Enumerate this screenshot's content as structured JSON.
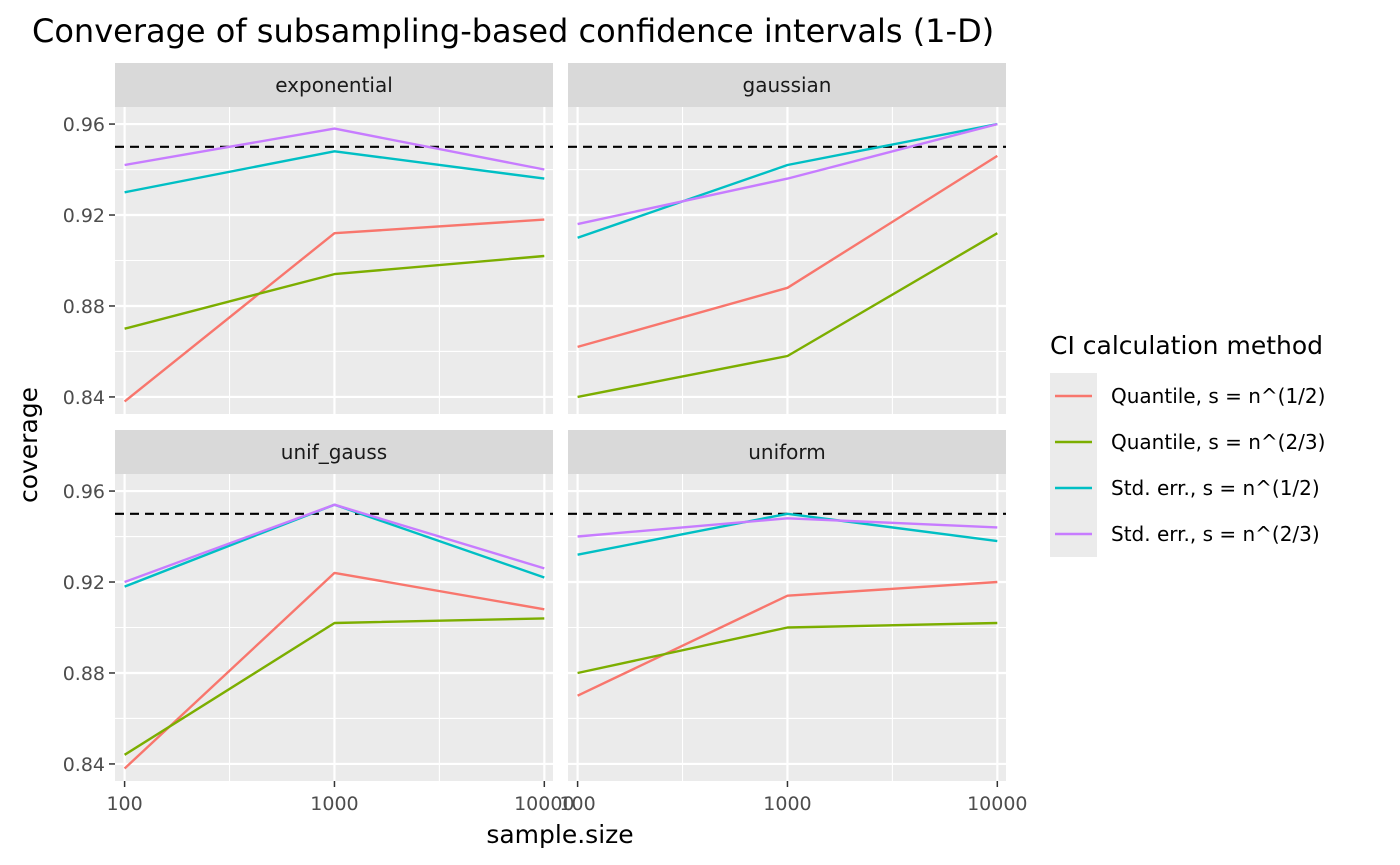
{
  "chart_data": {
    "type": "line",
    "title": "Converage of subsampling-based confidence intervals (1-D)",
    "xlabel": "sample.size",
    "ylabel": "coverage",
    "x_scale": "log10",
    "x": [
      100,
      1000,
      10000
    ],
    "x_tick_labels": [
      "100",
      "1000",
      "10000"
    ],
    "y_ticks": [
      0.84,
      0.88,
      0.92,
      0.96
    ],
    "y_tick_labels": [
      "0.84",
      "0.88",
      "0.92",
      "0.96"
    ],
    "ylim": [
      0.8325,
      0.9675
    ],
    "xlim": [
      90,
      11000
    ],
    "reference_line": {
      "y": 0.95,
      "style": "dashed",
      "color": "#000000"
    },
    "grid": true,
    "legend": {
      "title": "CI calculation method",
      "position": "right",
      "entries": [
        {
          "label": "Quantile, s = n^(1/2)",
          "color": "#F8766D"
        },
        {
          "label": "Quantile, s = n^(2/3)",
          "color": "#7CAE00"
        },
        {
          "label": "Std. err., s = n^(1/2)",
          "color": "#00BFC4"
        },
        {
          "label": "Std. err., s = n^(2/3)",
          "color": "#C77CFF"
        }
      ]
    },
    "facets": [
      {
        "label": "exponential",
        "series": [
          {
            "name": "Quantile, s = n^(1/2)",
            "values": [
              0.838,
              0.912,
              0.918
            ]
          },
          {
            "name": "Quantile, s = n^(2/3)",
            "values": [
              0.87,
              0.894,
              0.902
            ]
          },
          {
            "name": "Std. err., s = n^(1/2)",
            "values": [
              0.93,
              0.948,
              0.936
            ]
          },
          {
            "name": "Std. err., s = n^(2/3)",
            "values": [
              0.942,
              0.958,
              0.94
            ]
          }
        ]
      },
      {
        "label": "gaussian",
        "series": [
          {
            "name": "Quantile, s = n^(1/2)",
            "values": [
              0.862,
              0.888,
              0.946
            ]
          },
          {
            "name": "Quantile, s = n^(2/3)",
            "values": [
              0.84,
              0.858,
              0.912
            ]
          },
          {
            "name": "Std. err., s = n^(1/2)",
            "values": [
              0.91,
              0.942,
              0.96
            ]
          },
          {
            "name": "Std. err., s = n^(2/3)",
            "values": [
              0.916,
              0.936,
              0.96
            ]
          }
        ]
      },
      {
        "label": "unif_gauss",
        "series": [
          {
            "name": "Quantile, s = n^(1/2)",
            "values": [
              0.838,
              0.924,
              0.908
            ]
          },
          {
            "name": "Quantile, s = n^(2/3)",
            "values": [
              0.844,
              0.902,
              0.904
            ]
          },
          {
            "name": "Std. err., s = n^(1/2)",
            "values": [
              0.918,
              0.954,
              0.922
            ]
          },
          {
            "name": "Std. err., s = n^(2/3)",
            "values": [
              0.92,
              0.954,
              0.926
            ]
          }
        ]
      },
      {
        "label": "uniform",
        "series": [
          {
            "name": "Quantile, s = n^(1/2)",
            "values": [
              0.87,
              0.914,
              0.92
            ]
          },
          {
            "name": "Quantile, s = n^(2/3)",
            "values": [
              0.88,
              0.9,
              0.902
            ]
          },
          {
            "name": "Std. err., s = n^(1/2)",
            "values": [
              0.932,
              0.95,
              0.938
            ]
          },
          {
            "name": "Std. err., s = n^(2/3)",
            "values": [
              0.94,
              0.948,
              0.944
            ]
          }
        ]
      }
    ]
  }
}
